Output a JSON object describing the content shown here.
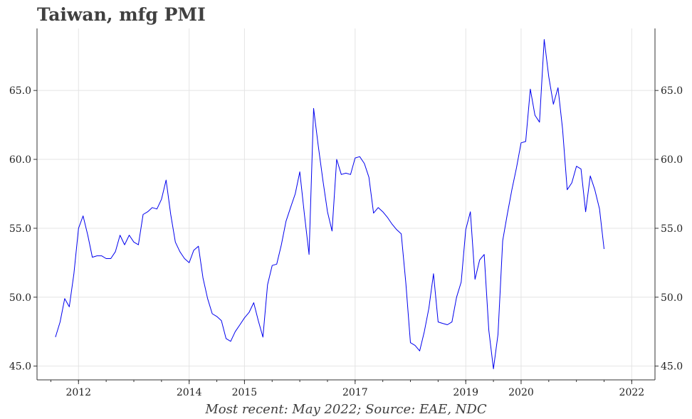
{
  "title": "Taiwan, mfg PMI",
  "caption": "Most recent: May 2022; Source: EAE, NDC",
  "chart_data": {
    "type": "line",
    "title": "Taiwan, mfg PMI",
    "xlabel": "",
    "ylabel": "",
    "xlim": [
      2011.25,
      2022.42
    ],
    "ylim": [
      44.0,
      69.5
    ],
    "grid": true,
    "x_ticks": [
      2012,
      2014,
      2015,
      2017,
      2019,
      2020,
      2022
    ],
    "x_tick_labels": [
      "2012",
      "2014",
      "2015",
      "2017",
      "2019",
      "2020",
      "2022"
    ],
    "y_ticks": [
      45.0,
      50.0,
      55.0,
      60.0,
      65.0
    ],
    "y_tick_labels": [
      "45.0",
      "50.0",
      "55.0",
      "60.0",
      "65.0"
    ],
    "line_color": "#0000ee",
    "series": [
      {
        "values": [
          {
            "x": 2011.583,
            "y": 47.1
          },
          {
            "x": 2011.667,
            "y": 48.2
          },
          {
            "x": 2011.75,
            "y": 49.9
          },
          {
            "x": 2011.833,
            "y": 49.3
          },
          {
            "x": 2011.917,
            "y": 51.7
          },
          {
            "x": 2012.0,
            "y": 55.0
          },
          {
            "x": 2012.083,
            "y": 55.9
          },
          {
            "x": 2012.167,
            "y": 54.5
          },
          {
            "x": 2012.25,
            "y": 52.9
          },
          {
            "x": 2012.333,
            "y": 53.0
          },
          {
            "x": 2012.417,
            "y": 53.0
          },
          {
            "x": 2012.5,
            "y": 52.8
          },
          {
            "x": 2012.583,
            "y": 52.8
          },
          {
            "x": 2012.667,
            "y": 53.3
          },
          {
            "x": 2012.75,
            "y": 54.5
          },
          {
            "x": 2012.833,
            "y": 53.8
          },
          {
            "x": 2012.917,
            "y": 54.5
          },
          {
            "x": 2013.0,
            "y": 54.0
          },
          {
            "x": 2013.083,
            "y": 53.8
          },
          {
            "x": 2013.167,
            "y": 56.0
          },
          {
            "x": 2013.25,
            "y": 56.2
          },
          {
            "x": 2013.333,
            "y": 56.5
          },
          {
            "x": 2013.417,
            "y": 56.4
          },
          {
            "x": 2013.5,
            "y": 57.1
          },
          {
            "x": 2013.583,
            "y": 58.5
          },
          {
            "x": 2013.667,
            "y": 56.0
          },
          {
            "x": 2013.75,
            "y": 54.0
          },
          {
            "x": 2013.833,
            "y": 53.3
          },
          {
            "x": 2013.917,
            "y": 52.8
          },
          {
            "x": 2014.0,
            "y": 52.5
          },
          {
            "x": 2014.083,
            "y": 53.4
          },
          {
            "x": 2014.167,
            "y": 53.7
          },
          {
            "x": 2014.25,
            "y": 51.4
          },
          {
            "x": 2014.333,
            "y": 49.9
          },
          {
            "x": 2014.417,
            "y": 48.8
          },
          {
            "x": 2014.5,
            "y": 48.6
          },
          {
            "x": 2014.583,
            "y": 48.3
          },
          {
            "x": 2014.667,
            "y": 47.0
          },
          {
            "x": 2014.75,
            "y": 46.8
          },
          {
            "x": 2014.833,
            "y": 47.5
          },
          {
            "x": 2014.917,
            "y": 48.0
          },
          {
            "x": 2015.0,
            "y": 48.5
          },
          {
            "x": 2015.083,
            "y": 48.9
          },
          {
            "x": 2015.167,
            "y": 49.6
          },
          {
            "x": 2015.25,
            "y": 48.3
          },
          {
            "x": 2015.333,
            "y": 47.1
          },
          {
            "x": 2015.417,
            "y": 50.9
          },
          {
            "x": 2015.5,
            "y": 52.3
          },
          {
            "x": 2015.583,
            "y": 52.4
          },
          {
            "x": 2015.667,
            "y": 53.8
          },
          {
            "x": 2015.75,
            "y": 55.5
          },
          {
            "x": 2015.833,
            "y": 56.5
          },
          {
            "x": 2015.917,
            "y": 57.5
          },
          {
            "x": 2016.0,
            "y": 59.1
          },
          {
            "x": 2016.083,
            "y": 56.0
          },
          {
            "x": 2016.167,
            "y": 53.1
          },
          {
            "x": 2016.25,
            "y": 63.7
          },
          {
            "x": 2016.333,
            "y": 61.0
          },
          {
            "x": 2016.417,
            "y": 58.5
          },
          {
            "x": 2016.5,
            "y": 56.2
          },
          {
            "x": 2016.583,
            "y": 54.8
          },
          {
            "x": 2016.667,
            "y": 60.0
          },
          {
            "x": 2016.75,
            "y": 58.9
          },
          {
            "x": 2016.833,
            "y": 59.0
          },
          {
            "x": 2016.917,
            "y": 58.9
          },
          {
            "x": 2017.0,
            "y": 60.1
          },
          {
            "x": 2017.083,
            "y": 60.2
          },
          {
            "x": 2017.167,
            "y": 59.7
          },
          {
            "x": 2017.25,
            "y": 58.7
          },
          {
            "x": 2017.333,
            "y": 56.1
          },
          {
            "x": 2017.417,
            "y": 56.5
          },
          {
            "x": 2017.5,
            "y": 56.2
          },
          {
            "x": 2017.583,
            "y": 55.8
          },
          {
            "x": 2017.667,
            "y": 55.3
          },
          {
            "x": 2017.75,
            "y": 54.9
          },
          {
            "x": 2017.833,
            "y": 54.6
          },
          {
            "x": 2017.917,
            "y": 51.0
          },
          {
            "x": 2018.0,
            "y": 46.7
          },
          {
            "x": 2018.083,
            "y": 46.5
          },
          {
            "x": 2018.167,
            "y": 46.1
          },
          {
            "x": 2018.25,
            "y": 47.5
          },
          {
            "x": 2018.333,
            "y": 49.2
          },
          {
            "x": 2018.417,
            "y": 51.7
          },
          {
            "x": 2018.5,
            "y": 48.2
          },
          {
            "x": 2018.583,
            "y": 48.1
          },
          {
            "x": 2018.667,
            "y": 48.0
          },
          {
            "x": 2018.75,
            "y": 48.2
          },
          {
            "x": 2018.833,
            "y": 50.0
          },
          {
            "x": 2018.917,
            "y": 51.1
          },
          {
            "x": 2019.0,
            "y": 54.9
          },
          {
            "x": 2019.083,
            "y": 56.2
          },
          {
            "x": 2019.167,
            "y": 51.3
          },
          {
            "x": 2019.25,
            "y": 52.7
          },
          {
            "x": 2019.333,
            "y": 53.1
          },
          {
            "x": 2019.417,
            "y": 47.6
          },
          {
            "x": 2019.5,
            "y": 44.8
          },
          {
            "x": 2019.583,
            "y": 47.3
          },
          {
            "x": 2019.667,
            "y": 54.1
          },
          {
            "x": 2019.75,
            "y": 56.0
          },
          {
            "x": 2019.833,
            "y": 57.8
          },
          {
            "x": 2019.917,
            "y": 59.4
          },
          {
            "x": 2020.0,
            "y": 61.2
          },
          {
            "x": 2020.083,
            "y": 61.3
          },
          {
            "x": 2020.167,
            "y": 65.1
          },
          {
            "x": 2020.25,
            "y": 63.2
          },
          {
            "x": 2020.333,
            "y": 62.7
          },
          {
            "x": 2020.417,
            "y": 68.7
          },
          {
            "x": 2020.5,
            "y": 66.0
          },
          {
            "x": 2020.583,
            "y": 64.0
          },
          {
            "x": 2020.667,
            "y": 65.2
          },
          {
            "x": 2020.75,
            "y": 62.2
          },
          {
            "x": 2020.833,
            "y": 57.8
          },
          {
            "x": 2020.917,
            "y": 58.3
          },
          {
            "x": 2021.0,
            "y": 59.5
          },
          {
            "x": 2021.083,
            "y": 59.3
          },
          {
            "x": 2021.167,
            "y": 56.2
          },
          {
            "x": 2021.25,
            "y": 58.8
          },
          {
            "x": 2021.333,
            "y": 57.8
          },
          {
            "x": 2021.417,
            "y": 56.4
          },
          {
            "x": 2021.5,
            "y": 53.5
          }
        ]
      }
    ]
  }
}
